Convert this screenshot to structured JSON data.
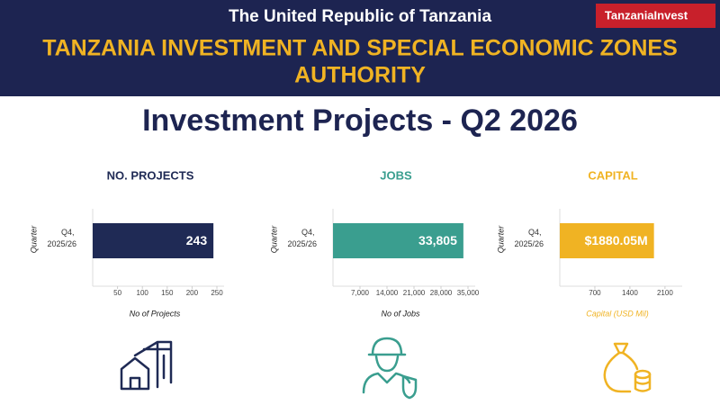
{
  "header": {
    "country": "The United Republic of Tanzania",
    "authority_lines": [
      "TANZANIA INVESTMENT AND SPECIAL ECONOMIC ZONES",
      "AUTHORITY"
    ],
    "logo": "TanzaniaInvest",
    "title": "Investment Projects - Q2 2026"
  },
  "chart_data": [
    {
      "type": "bar",
      "title": "NO. PROJECTS",
      "categories": [
        "Q4, 2025/26"
      ],
      "values": [
        243
      ],
      "color": "#1f2a55",
      "xlim": [
        0,
        250
      ],
      "xticks": [
        50,
        100,
        150,
        200,
        250
      ],
      "xlabel": "No of Projects",
      "ylabel": "Quarter"
    },
    {
      "type": "bar",
      "title": "JOBS",
      "categories": [
        "Q4, 2025/26"
      ],
      "values": [
        33805
      ],
      "value_labels": [
        "33,805"
      ],
      "color": "#3a9e8f",
      "xlim": [
        0,
        35000
      ],
      "xticks": [
        {
          "value": 7000,
          "label": "7,000"
        },
        {
          "value": 14000,
          "label": "14,000"
        },
        {
          "value": 21000,
          "label": "21,000"
        },
        {
          "value": 28000,
          "label": "28,000"
        },
        {
          "value": 35000,
          "label": "35,000"
        }
      ],
      "xlabel": "No of Jobs",
      "ylabel": "Quarter"
    },
    {
      "type": "bar",
      "title": "CAPITAL",
      "categories": [
        "Q4, 2025/26"
      ],
      "values": [
        1880.05
      ],
      "value_labels": [
        "$1880.05M"
      ],
      "color": "#f0b323",
      "xlim": [
        0,
        2300
      ],
      "xticks": [
        700,
        1400,
        2100
      ],
      "xlabel": "Capital (USD Mil)",
      "ylabel": "Quarter"
    }
  ]
}
